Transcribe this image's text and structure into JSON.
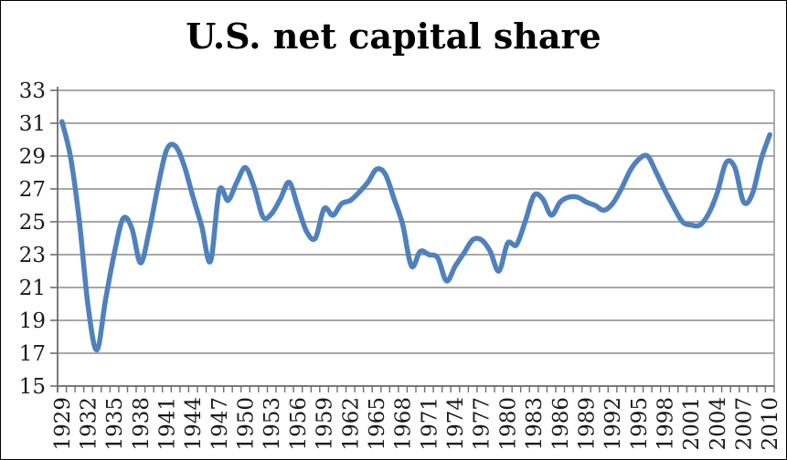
{
  "title": "U.S. net capital share",
  "chart_data": {
    "type": "line",
    "title": "U.S. net capital share",
    "xlabel": "",
    "ylabel": "",
    "ylim": [
      15,
      33
    ],
    "y_ticks": [
      15,
      17,
      19,
      21,
      23,
      25,
      27,
      29,
      31,
      33
    ],
    "x_label_interval": 3,
    "x_shown_labels": [
      "1929",
      "1932",
      "1935",
      "1938",
      "1941",
      "1944",
      "1947",
      "1950",
      "1953",
      "1956",
      "1959",
      "1962",
      "1965",
      "1968",
      "1971",
      "1974",
      "1977",
      "1980",
      "1983",
      "1986",
      "1989",
      "1992",
      "1995",
      "1998",
      "2001",
      "2004",
      "2007",
      "2010"
    ],
    "grid": true,
    "legend": "none",
    "x": [
      1929,
      1930,
      1931,
      1932,
      1933,
      1934,
      1935,
      1936,
      1937,
      1938,
      1939,
      1940,
      1941,
      1942,
      1943,
      1944,
      1945,
      1946,
      1947,
      1948,
      1949,
      1950,
      1951,
      1952,
      1953,
      1954,
      1955,
      1956,
      1957,
      1958,
      1959,
      1960,
      1961,
      1962,
      1963,
      1964,
      1965,
      1966,
      1967,
      1968,
      1969,
      1970,
      1971,
      1972,
      1973,
      1974,
      1975,
      1976,
      1977,
      1978,
      1979,
      1980,
      1981,
      1982,
      1983,
      1984,
      1985,
      1986,
      1987,
      1988,
      1989,
      1990,
      1991,
      1992,
      1993,
      1994,
      1995,
      1996,
      1997,
      1998,
      1999,
      2000,
      2001,
      2002,
      2003,
      2004,
      2005,
      2006,
      2007,
      2008,
      2009,
      2010
    ],
    "series": [
      {
        "name": "U.S. net capital share",
        "color": "#4F81BD",
        "smoothed": true,
        "values": [
          31.1,
          28.9,
          25.0,
          19.8,
          17.2,
          20.3,
          23.1,
          25.2,
          24.6,
          22.5,
          24.5,
          27.2,
          29.4,
          29.6,
          28.4,
          26.5,
          24.7,
          22.6,
          26.9,
          26.3,
          27.4,
          28.3,
          27.1,
          25.3,
          25.5,
          26.4,
          27.4,
          25.9,
          24.4,
          24.0,
          25.8,
          25.4,
          26.1,
          26.3,
          26.8,
          27.4,
          28.2,
          27.9,
          26.4,
          24.8,
          22.3,
          23.2,
          23.0,
          22.8,
          21.4,
          22.3,
          23.1,
          23.9,
          23.9,
          23.2,
          22.0,
          23.7,
          23.6,
          25.0,
          26.6,
          26.4,
          25.4,
          26.2,
          26.5,
          26.5,
          26.2,
          26.0,
          25.7,
          26.1,
          27.0,
          28.1,
          28.8,
          29.0,
          28.0,
          26.9,
          25.9,
          25.0,
          24.8,
          24.8,
          25.5,
          26.8,
          28.6,
          28.3,
          26.2,
          26.7,
          28.8,
          30.3
        ]
      }
    ],
    "styles": {
      "line_color": "#4F81BD",
      "grid_color": "#8C8C8C",
      "axis_color": "#6E6E6E",
      "text_color": "#1A1A1A",
      "background": "#FFFFFF",
      "outer_border": "#000000"
    }
  }
}
